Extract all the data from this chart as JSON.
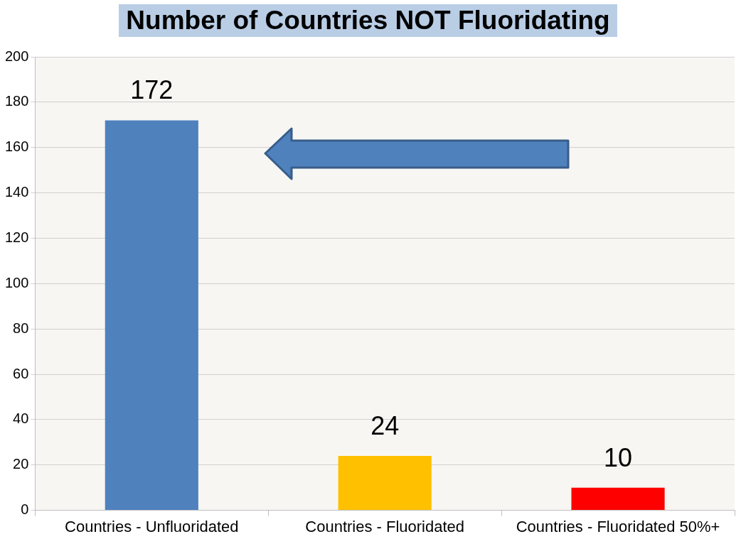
{
  "chart_data": {
    "type": "bar",
    "title": "Number of Countries NOT Fluoridating",
    "categories": [
      "Countries - Unfluoridated",
      "Countries - Fluoridated",
      "Countries - Fluoridated 50%+"
    ],
    "values": [
      172,
      24,
      10
    ],
    "colors": [
      "#4f81bd",
      "#ffc000",
      "#ff0000"
    ],
    "ylim": [
      0,
      200
    ],
    "yticks": [
      0,
      20,
      40,
      60,
      80,
      100,
      120,
      140,
      160,
      180,
      200
    ],
    "grid": "y",
    "data_labels": true
  }
}
